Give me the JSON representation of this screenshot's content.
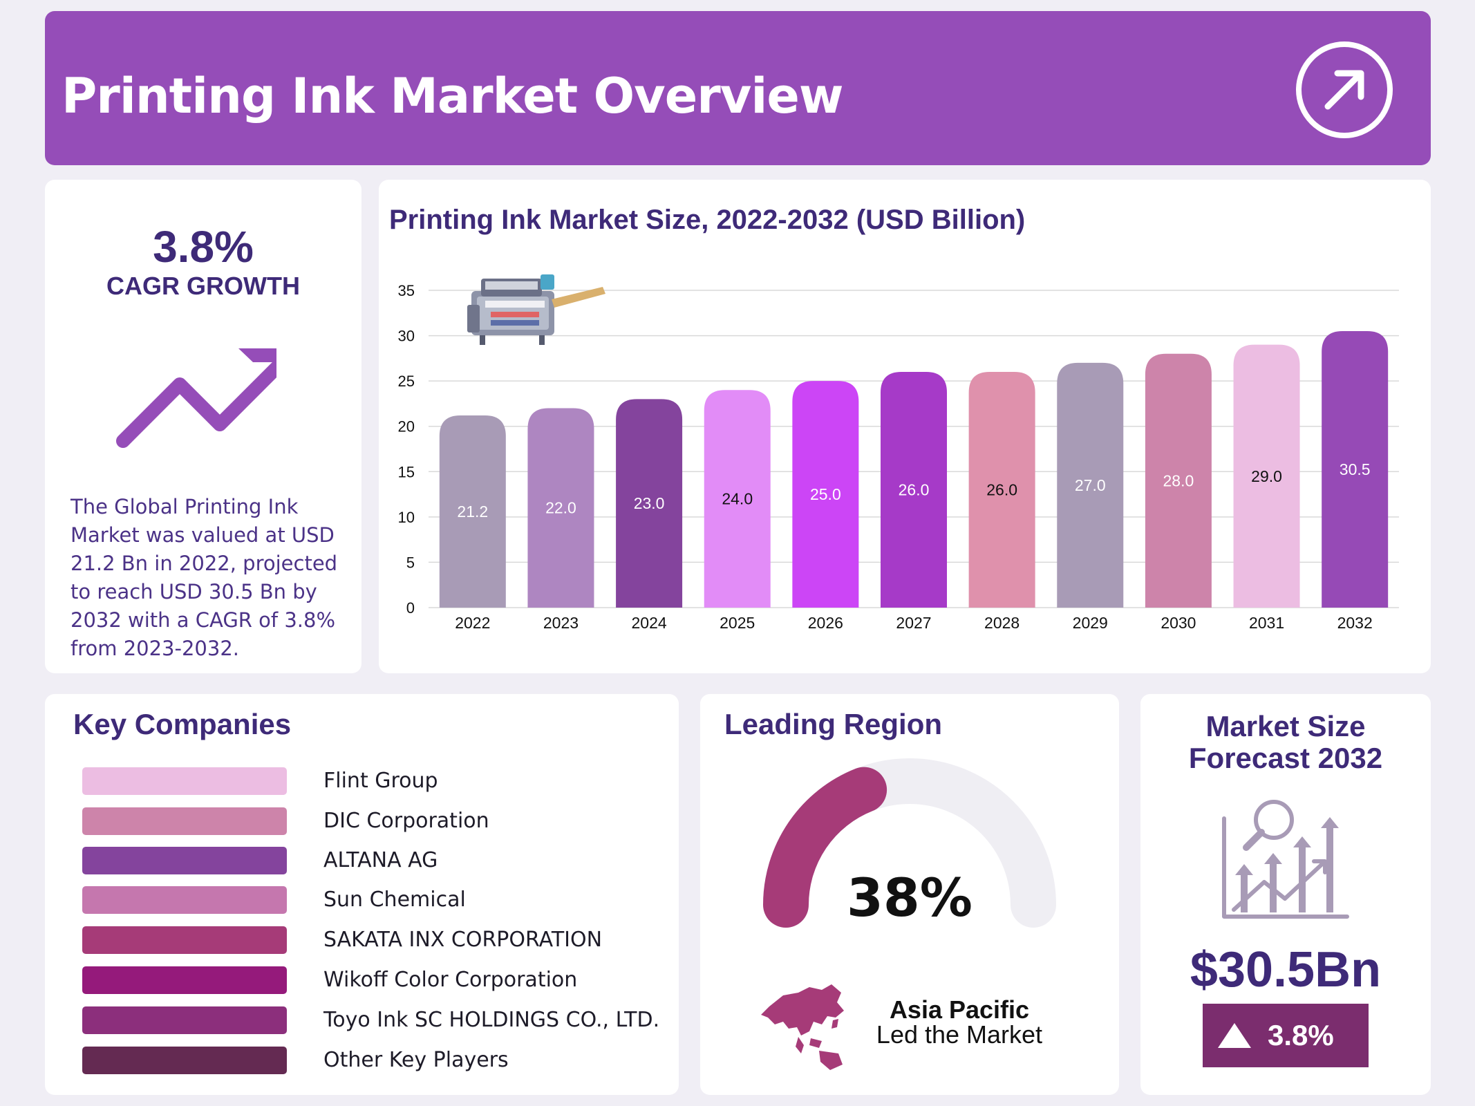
{
  "header": {
    "title": "Printing Ink Market Overview",
    "icon": "arrow-up-right-icon"
  },
  "cagr": {
    "value": "3.8%",
    "label": "CAGR GROWTH",
    "icon": "trend-up-icon",
    "description": "The Global Printing Ink Market was valued at USD 21.2 Bn in 2022, projected to reach USD 30.5 Bn by 2032 with a CAGR of 3.8% from 2023-2032."
  },
  "chart_data": {
    "type": "bar",
    "title": "Printing Ink Market Size, 2022-2032 (USD Billion)",
    "xlabel": "",
    "ylabel": "",
    "categories": [
      "2022",
      "2023",
      "2024",
      "2025",
      "2026",
      "2027",
      "2028",
      "2029",
      "2030",
      "2031",
      "2032"
    ],
    "values": [
      21.2,
      22.0,
      23.0,
      24.0,
      25.0,
      26.0,
      26.0,
      27.0,
      28.0,
      29.0,
      30.5
    ],
    "value_labels": [
      "21.2",
      "22.0",
      "23.0",
      "24.0",
      "25.0",
      "26.0",
      "26.0",
      "27.0",
      "28.0",
      "29.0",
      "30.5"
    ],
    "colors": [
      "#a89bb6",
      "#ae86c1",
      "#84449d",
      "#e28cf7",
      "#cc45f6",
      "#a63ac8",
      "#df91ac",
      "#a89bb6",
      "#cd84aa",
      "#ecbde2",
      "#964ab6"
    ],
    "label_colors": [
      "#ffffff",
      "#ffffff",
      "#ffffff",
      "#111111",
      "#ffffff",
      "#ffffff",
      "#111111",
      "#ffffff",
      "#ffffff",
      "#111111",
      "#ffffff"
    ],
    "yticks": [
      0,
      5,
      10,
      15,
      20,
      25,
      30,
      35
    ],
    "ylim": [
      0,
      35
    ],
    "grid": true,
    "legend": "none",
    "illustration": "printing-press-icon"
  },
  "companies": {
    "title": "Key Companies",
    "items": [
      {
        "name": "Flint Group",
        "color": "#ecbde2"
      },
      {
        "name": "DIC Corporation",
        "color": "#cd84aa"
      },
      {
        "name": "ALTANA AG",
        "color": "#84449d"
      },
      {
        "name": "Sun Chemical",
        "color": "#c577ae"
      },
      {
        "name": "SAKATA INX CORPORATION",
        "color": "#a63b78"
      },
      {
        "name": "Wikoff Color Corporation",
        "color": "#951a7b"
      },
      {
        "name": "Toyo Ink SC HOLDINGS CO., LTD.",
        "color": "#8c2f7c"
      },
      {
        "name": "Other Key Players",
        "color": "#642a52"
      }
    ]
  },
  "region": {
    "title": "Leading Region",
    "share_label": "38%",
    "share": 0.38,
    "name": "Asia Pacific",
    "subtitle": "Led the Market",
    "gauge_color": "#a63b78",
    "track_color": "#efeef3",
    "map_icon": "asia-map-icon"
  },
  "forecast": {
    "title_line1": "Market Size",
    "title_line2": "Forecast 2032",
    "value": "$30.5Bn",
    "growth": "3.8%",
    "icon": "growth-chart-icon",
    "badge_color": "#7b2d6e"
  }
}
